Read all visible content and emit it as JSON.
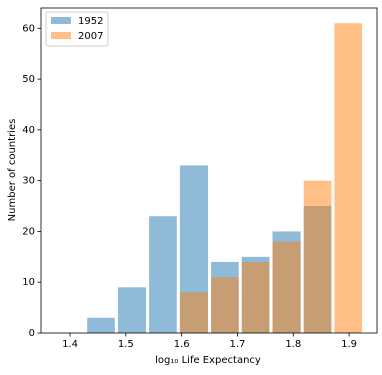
{
  "chart_data": {
    "type": "histogram",
    "xlabel": "log₁₀ Life Expectancy",
    "ylabel": "Number of countries",
    "bins": [
      1.428,
      1.483,
      1.539,
      1.594,
      1.65,
      1.705,
      1.76,
      1.816,
      1.871,
      1.926
    ],
    "series": [
      {
        "name": "1952",
        "color": "#1f77b4",
        "values": [
          3,
          9,
          23,
          33,
          14,
          15,
          20,
          25,
          0
        ]
      },
      {
        "name": "2007",
        "color": "#ff7f0e",
        "values": [
          0,
          0,
          0,
          8,
          11,
          14,
          18,
          30,
          61
        ]
      }
    ],
    "xlim": [
      1.348,
      1.95
    ],
    "xticks": [
      1.4,
      1.5,
      1.6,
      1.7,
      1.8,
      1.9
    ],
    "ylim": [
      0,
      64
    ],
    "yticks": [
      0,
      10,
      20,
      30,
      40,
      50,
      60
    ],
    "legend": "upper-left"
  }
}
